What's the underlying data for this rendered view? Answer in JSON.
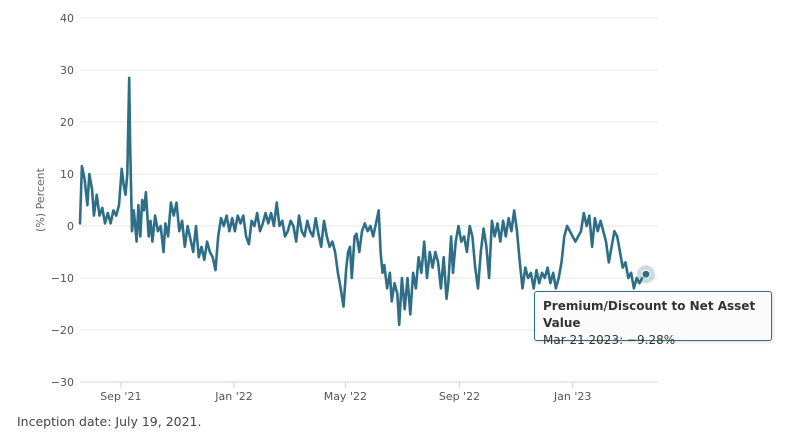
{
  "chart_data": {
    "type": "line",
    "title": "",
    "xlabel": "",
    "ylabel": "(%) Percent",
    "ylim": [
      -30,
      40
    ],
    "yticks": [
      40,
      30,
      20,
      10,
      0,
      -10,
      -20,
      -30
    ],
    "xlim": [
      "2021-07-19",
      "2023-04-03"
    ],
    "xticks": [
      {
        "date": "2021-09-01",
        "label": "Sep '21"
      },
      {
        "date": "2022-01-01",
        "label": "Jan '22"
      },
      {
        "date": "2022-05-01",
        "label": "May '22"
      },
      {
        "date": "2022-09-01",
        "label": "Sep '22"
      },
      {
        "date": "2023-01-01",
        "label": "Jan '23"
      }
    ],
    "grid": true,
    "series": [
      {
        "name": "Premium/Discount to Net Asset Value",
        "color": "#2e6f87",
        "points": [
          [
            "2021-07-19",
            0.5
          ],
          [
            "2021-07-21",
            11.5
          ],
          [
            "2021-07-24",
            9.0
          ],
          [
            "2021-07-27",
            4.0
          ],
          [
            "2021-07-29",
            10.0
          ],
          [
            "2021-08-01",
            7.0
          ],
          [
            "2021-08-03",
            2.0
          ],
          [
            "2021-08-06",
            6.0
          ],
          [
            "2021-08-09",
            2.0
          ],
          [
            "2021-08-12",
            3.5
          ],
          [
            "2021-08-15",
            0.5
          ],
          [
            "2021-08-18",
            2.5
          ],
          [
            "2021-08-21",
            0.5
          ],
          [
            "2021-08-24",
            3.0
          ],
          [
            "2021-08-27",
            2.0
          ],
          [
            "2021-08-30",
            4.0
          ],
          [
            "2021-09-02",
            11.0
          ],
          [
            "2021-09-04",
            8.0
          ],
          [
            "2021-09-06",
            6.0
          ],
          [
            "2021-09-08",
            10.0
          ],
          [
            "2021-09-10",
            28.5
          ],
          [
            "2021-09-11",
            16.0
          ],
          [
            "2021-09-13",
            -1.0
          ],
          [
            "2021-09-15",
            3.0
          ],
          [
            "2021-09-18",
            -3.0
          ],
          [
            "2021-09-20",
            4.0
          ],
          [
            "2021-09-22",
            -2.0
          ],
          [
            "2021-09-24",
            5.0
          ],
          [
            "2021-09-26",
            3.0
          ],
          [
            "2021-09-28",
            6.5
          ],
          [
            "2021-10-01",
            -2.0
          ],
          [
            "2021-10-03",
            1.0
          ],
          [
            "2021-10-05",
            -3.0
          ],
          [
            "2021-10-08",
            2.0
          ],
          [
            "2021-10-11",
            -1.0
          ],
          [
            "2021-10-14",
            0.0
          ],
          [
            "2021-10-17",
            -5.0
          ],
          [
            "2021-10-19",
            0.5
          ],
          [
            "2021-10-22",
            -2.0
          ],
          [
            "2021-10-25",
            4.5
          ],
          [
            "2021-10-28",
            2.0
          ],
          [
            "2021-10-31",
            4.5
          ],
          [
            "2021-11-03",
            -1.0
          ],
          [
            "2021-11-06",
            1.0
          ],
          [
            "2021-11-09",
            -4.0
          ],
          [
            "2021-11-12",
            0.0
          ],
          [
            "2021-11-15",
            -2.5
          ],
          [
            "2021-11-18",
            -5.0
          ],
          [
            "2021-11-21",
            0.0
          ],
          [
            "2021-11-24",
            -6.0
          ],
          [
            "2021-11-27",
            -4.0
          ],
          [
            "2021-11-30",
            -6.5
          ],
          [
            "2021-12-03",
            -3.0
          ],
          [
            "2021-12-06",
            -5.0
          ],
          [
            "2021-12-09",
            -6.0
          ],
          [
            "2021-12-12",
            -8.5
          ],
          [
            "2021-12-15",
            -2.0
          ],
          [
            "2021-12-18",
            1.5
          ],
          [
            "2021-12-21",
            0.0
          ],
          [
            "2021-12-24",
            2.0
          ],
          [
            "2021-12-27",
            -1.0
          ],
          [
            "2021-12-30",
            1.5
          ],
          [
            "2022-01-02",
            -1.0
          ],
          [
            "2022-01-05",
            2.0
          ],
          [
            "2022-01-08",
            0.5
          ],
          [
            "2022-01-11",
            2.0
          ],
          [
            "2022-01-14",
            -2.0
          ],
          [
            "2022-01-17",
            -3.5
          ],
          [
            "2022-01-20",
            1.0
          ],
          [
            "2022-01-23",
            0.0
          ],
          [
            "2022-01-26",
            2.5
          ],
          [
            "2022-01-29",
            -1.0
          ],
          [
            "2022-02-01",
            0.5
          ],
          [
            "2022-02-04",
            2.5
          ],
          [
            "2022-02-07",
            0.5
          ],
          [
            "2022-02-10",
            2.5
          ],
          [
            "2022-02-13",
            0.0
          ],
          [
            "2022-02-16",
            4.5
          ],
          [
            "2022-02-19",
            0.0
          ],
          [
            "2022-02-22",
            1.0
          ],
          [
            "2022-02-25",
            -2.0
          ],
          [
            "2022-02-28",
            -1.0
          ],
          [
            "2022-03-03",
            1.0
          ],
          [
            "2022-03-06",
            0.0
          ],
          [
            "2022-03-09",
            -3.0
          ],
          [
            "2022-03-12",
            2.0
          ],
          [
            "2022-03-15",
            -1.0
          ],
          [
            "2022-03-18",
            -2.0
          ],
          [
            "2022-03-21",
            1.0
          ],
          [
            "2022-03-24",
            -1.0
          ],
          [
            "2022-03-27",
            -2.0
          ],
          [
            "2022-03-30",
            1.5
          ],
          [
            "2022-04-02",
            -1.5
          ],
          [
            "2022-04-05",
            -4.0
          ],
          [
            "2022-04-08",
            1.0
          ],
          [
            "2022-04-11",
            -2.0
          ],
          [
            "2022-04-14",
            -4.0
          ],
          [
            "2022-04-17",
            -3.0
          ],
          [
            "2022-04-20",
            -5.0
          ],
          [
            "2022-04-23",
            -9.0
          ],
          [
            "2022-04-26",
            -12.0
          ],
          [
            "2022-04-29",
            -15.5
          ],
          [
            "2022-05-02",
            -8.0
          ],
          [
            "2022-05-04",
            -5.0
          ],
          [
            "2022-05-06",
            -4.0
          ],
          [
            "2022-05-08",
            -10.0
          ],
          [
            "2022-05-11",
            -2.0
          ],
          [
            "2022-05-13",
            -1.5
          ],
          [
            "2022-05-16",
            -5.0
          ],
          [
            "2022-05-19",
            -1.0
          ],
          [
            "2022-05-22",
            0.5
          ],
          [
            "2022-05-25",
            -1.0
          ],
          [
            "2022-05-28",
            0.0
          ],
          [
            "2022-05-31",
            -2.0
          ],
          [
            "2022-06-03",
            0.5
          ],
          [
            "2022-06-06",
            3.0
          ],
          [
            "2022-06-08",
            -5.0
          ],
          [
            "2022-06-10",
            -9.0
          ],
          [
            "2022-06-12",
            -7.5
          ],
          [
            "2022-06-15",
            -12.0
          ],
          [
            "2022-06-18",
            -9.0
          ],
          [
            "2022-06-20",
            -14.5
          ],
          [
            "2022-06-23",
            -11.0
          ],
          [
            "2022-06-26",
            -13.0
          ],
          [
            "2022-06-28",
            -19.0
          ],
          [
            "2022-07-01",
            -10.0
          ],
          [
            "2022-07-04",
            -16.0
          ],
          [
            "2022-07-07",
            -10.0
          ],
          [
            "2022-07-10",
            -17.0
          ],
          [
            "2022-07-13",
            -9.0
          ],
          [
            "2022-07-16",
            -12.0
          ],
          [
            "2022-07-19",
            -6.0
          ],
          [
            "2022-07-22",
            -9.0
          ],
          [
            "2022-07-25",
            -3.0
          ],
          [
            "2022-07-28",
            -10.0
          ],
          [
            "2022-07-31",
            -5.0
          ],
          [
            "2022-08-03",
            -8.0
          ],
          [
            "2022-08-06",
            -5.0
          ],
          [
            "2022-08-09",
            -7.0
          ],
          [
            "2022-08-12",
            -12.0
          ],
          [
            "2022-08-15",
            -6.0
          ],
          [
            "2022-08-18",
            -14.0
          ],
          [
            "2022-08-20",
            -11.0
          ],
          [
            "2022-08-23",
            -2.0
          ],
          [
            "2022-08-25",
            -9.0
          ],
          [
            "2022-08-28",
            -3.0
          ],
          [
            "2022-08-31",
            0.0
          ],
          [
            "2022-09-03",
            -3.0
          ],
          [
            "2022-09-06",
            -2.0
          ],
          [
            "2022-09-09",
            -5.0
          ],
          [
            "2022-09-12",
            0.0
          ],
          [
            "2022-09-15",
            -2.0
          ],
          [
            "2022-09-18",
            -8.0
          ],
          [
            "2022-09-21",
            -12.0
          ],
          [
            "2022-09-24",
            -5.0
          ],
          [
            "2022-09-27",
            -0.5
          ],
          [
            "2022-09-30",
            -4.0
          ],
          [
            "2022-10-03",
            -10.0
          ],
          [
            "2022-10-06",
            1.0
          ],
          [
            "2022-10-09",
            -2.0
          ],
          [
            "2022-10-12",
            0.5
          ],
          [
            "2022-10-15",
            -3.0
          ],
          [
            "2022-10-18",
            1.0
          ],
          [
            "2022-10-21",
            -2.0
          ],
          [
            "2022-10-24",
            1.5
          ],
          [
            "2022-10-27",
            -1.0
          ],
          [
            "2022-10-30",
            3.0
          ],
          [
            "2022-11-02",
            -1.0
          ],
          [
            "2022-11-05",
            -7.0
          ],
          [
            "2022-11-08",
            -12.0
          ],
          [
            "2022-11-11",
            -8.0
          ],
          [
            "2022-11-14",
            -10.0
          ],
          [
            "2022-11-17",
            -9.0
          ],
          [
            "2022-11-20",
            -12.0
          ],
          [
            "2022-11-23",
            -8.5
          ],
          [
            "2022-11-26",
            -11.0
          ],
          [
            "2022-11-29",
            -9.0
          ],
          [
            "2022-12-02",
            -10.0
          ],
          [
            "2022-12-05",
            -8.0
          ],
          [
            "2022-12-08",
            -11.0
          ],
          [
            "2022-12-11",
            -9.0
          ],
          [
            "2022-12-14",
            -12.0
          ],
          [
            "2022-12-17",
            -10.0
          ],
          [
            "2022-12-20",
            -7.0
          ],
          [
            "2022-12-23",
            -2.0
          ],
          [
            "2022-12-26",
            0.0
          ],
          [
            "2022-12-29",
            -1.0
          ],
          [
            "2023-01-01",
            -2.0
          ],
          [
            "2023-01-04",
            -3.0
          ],
          [
            "2023-01-07",
            -2.0
          ],
          [
            "2023-01-10",
            -1.0
          ],
          [
            "2023-01-13",
            2.5
          ],
          [
            "2023-01-16",
            0.0
          ],
          [
            "2023-01-19",
            2.0
          ],
          [
            "2023-01-22",
            -4.0
          ],
          [
            "2023-01-25",
            1.5
          ],
          [
            "2023-01-28",
            -1.0
          ],
          [
            "2023-01-31",
            1.0
          ],
          [
            "2023-02-03",
            -1.0
          ],
          [
            "2023-02-06",
            -3.0
          ],
          [
            "2023-02-09",
            -7.0
          ],
          [
            "2023-02-12",
            -4.0
          ],
          [
            "2023-02-15",
            -1.0
          ],
          [
            "2023-02-18",
            -2.0
          ],
          [
            "2023-02-21",
            -5.0
          ],
          [
            "2023-02-24",
            -8.0
          ],
          [
            "2023-02-27",
            -7.0
          ],
          [
            "2023-03-02",
            -10.0
          ],
          [
            "2023-03-05",
            -9.0
          ],
          [
            "2023-03-08",
            -12.0
          ],
          [
            "2023-03-11",
            -10.0
          ],
          [
            "2023-03-14",
            -11.0
          ],
          [
            "2023-03-17",
            -10.0
          ],
          [
            "2023-03-21",
            -9.28
          ]
        ]
      }
    ],
    "hover_point": {
      "date": "2023-03-21",
      "value": -9.28
    }
  },
  "tooltip": {
    "title": "Premium/Discount to Net Asset Value",
    "text": "Mar 21 2023: −9.28%"
  },
  "footnote": "Inception date: July 19, 2021."
}
